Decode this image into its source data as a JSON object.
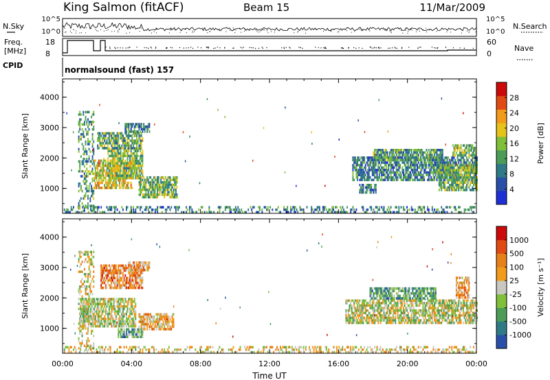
{
  "header": {
    "station": "King Salmon (fitACF)",
    "beam": "Beam 15",
    "date": "11/Mar/2009"
  },
  "top_panels": {
    "nsky_label": "N.Sky",
    "nsearch_label": "N.Search",
    "noise_ticks": [
      "10^5",
      "10^0"
    ],
    "freq_label_1": "Freq.",
    "freq_label_2": "[MHz]",
    "freq_ticks": [
      "18",
      "8"
    ],
    "nave_label": "Nave",
    "nave_ticks": [
      "60",
      "0"
    ],
    "cpid_label": "CPID",
    "cpid_value": "normalsound (fast) 157"
  },
  "x_axis": {
    "label": "Time UT",
    "ticks": [
      "00:00",
      "04:00",
      "08:00",
      "12:00",
      "16:00",
      "20:00",
      "00:00"
    ]
  },
  "chart_data": [
    {
      "type": "heatmap",
      "panel": "power",
      "xlabel": "Time UT",
      "ylabel": "Slant Range [km]",
      "xlim": [
        0,
        24
      ],
      "ylim": [
        180,
        4600
      ],
      "yticks": [
        "4000",
        "3000",
        "2000",
        "1000"
      ],
      "colorbar": {
        "label": "Power [dB]",
        "ticks": [
          "28",
          "24",
          "20",
          "16",
          "12",
          "8",
          "4"
        ],
        "colors": [
          "#1f2fd6",
          "#2a4fa8",
          "#2f7a86",
          "#4c9c58",
          "#7fbf3a",
          "#e6c21a",
          "#f29a1a",
          "#e24a14",
          "#cc0a0a"
        ]
      },
      "scatter_regions": [
        {
          "t0": 0.9,
          "t1": 1.8,
          "r0": 250,
          "r1": 3550,
          "level": 0.35
        },
        {
          "t0": 1.8,
          "t1": 4.0,
          "r0": 1050,
          "r1": 1950,
          "level": 0.6
        },
        {
          "t0": 2.6,
          "t1": 4.6,
          "r0": 1300,
          "r1": 2350,
          "level": 0.45
        },
        {
          "t0": 2.0,
          "t1": 4.6,
          "r0": 2350,
          "r1": 2850,
          "level": 0.4
        },
        {
          "t0": 3.6,
          "t1": 5.0,
          "r0": 2850,
          "r1": 3150,
          "level": 0.3
        },
        {
          "t0": 4.4,
          "t1": 6.6,
          "r0": 700,
          "r1": 1400,
          "level": 0.45
        },
        {
          "t0": 16.8,
          "t1": 24.0,
          "r0": 1300,
          "r1": 2050,
          "level": 0.3
        },
        {
          "t0": 18.0,
          "t1": 22.0,
          "r0": 1900,
          "r1": 2300,
          "level": 0.35
        },
        {
          "t0": 21.8,
          "t1": 24.0,
          "r0": 950,
          "r1": 1800,
          "level": 0.45
        },
        {
          "t0": 22.6,
          "t1": 24.0,
          "r0": 2100,
          "r1": 2450,
          "level": 0.45
        },
        {
          "t0": 17.2,
          "t1": 18.2,
          "r0": 850,
          "r1": 1150,
          "level": 0.25
        },
        {
          "t0": 0.0,
          "t1": 24.0,
          "r0": 200,
          "r1": 420,
          "level": 0.3
        }
      ]
    },
    {
      "type": "heatmap",
      "panel": "velocity",
      "xlabel": "Time UT",
      "ylabel": "Slant Range [km]",
      "xlim": [
        0,
        24
      ],
      "ylim": [
        180,
        4600
      ],
      "yticks": [
        "4000",
        "3000",
        "2000",
        "1000"
      ],
      "colorbar": {
        "label": "Velocity [m s⁻¹]",
        "ticks": [
          "1000",
          "500",
          "100",
          "25",
          "-25",
          "-100",
          "-500",
          "-1000"
        ],
        "colors": [
          "#2a4fa8",
          "#2f7a86",
          "#4c9c58",
          "#7fbf3a",
          "#c8c8c0",
          "#f29a1a",
          "#e6801a",
          "#e24a14",
          "#cc0a0a"
        ]
      },
      "scatter_regions": [
        {
          "t0": 0.9,
          "t1": 1.8,
          "r0": 250,
          "r1": 3550,
          "level": 0.5
        },
        {
          "t0": 1.0,
          "t1": 4.2,
          "r0": 1050,
          "r1": 2000,
          "level": 0.45
        },
        {
          "t0": 2.2,
          "t1": 4.6,
          "r0": 2350,
          "r1": 3100,
          "level": 0.7
        },
        {
          "t0": 3.8,
          "t1": 5.0,
          "r0": 2900,
          "r1": 3200,
          "level": 0.65
        },
        {
          "t0": 4.4,
          "t1": 6.4,
          "r0": 1000,
          "r1": 1500,
          "level": 0.6
        },
        {
          "t0": 3.2,
          "t1": 4.6,
          "r0": 700,
          "r1": 1000,
          "level": 0.3
        },
        {
          "t0": 16.4,
          "t1": 24.0,
          "r0": 1200,
          "r1": 1950,
          "level": 0.45
        },
        {
          "t0": 17.8,
          "t1": 21.6,
          "r0": 2000,
          "r1": 2350,
          "level": 0.3
        },
        {
          "t0": 22.8,
          "t1": 23.6,
          "r0": 2050,
          "r1": 2700,
          "level": 0.65
        },
        {
          "t0": 0.0,
          "t1": 24.0,
          "r0": 200,
          "r1": 420,
          "level": 0.55
        }
      ]
    }
  ]
}
